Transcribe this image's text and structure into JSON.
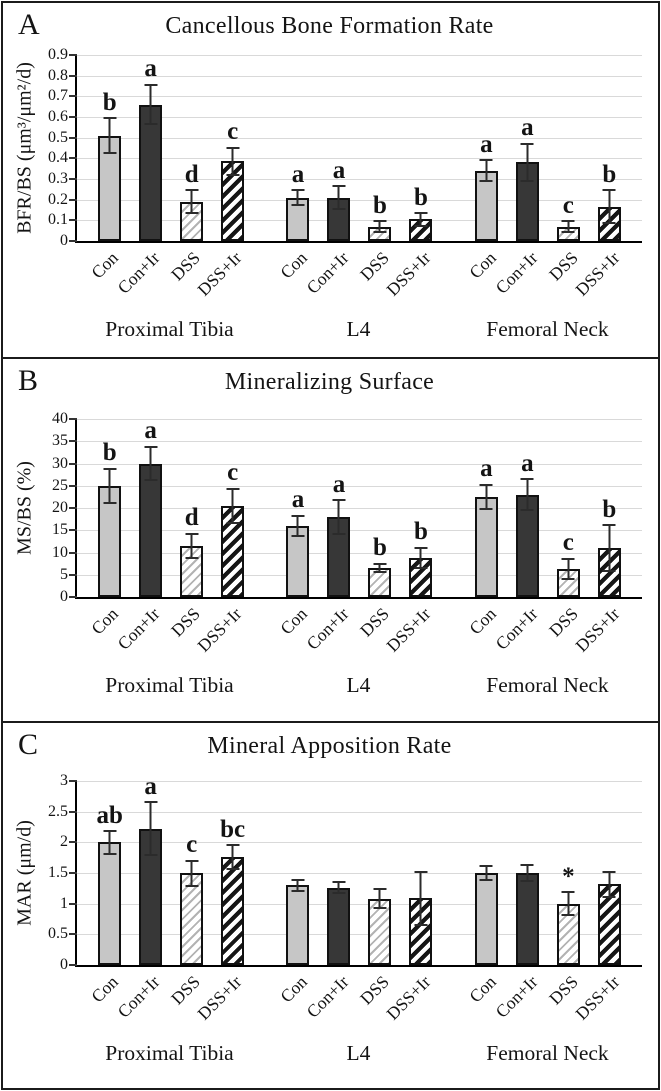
{
  "figure": {
    "type": "multi-panel bar chart figure",
    "panel_labels": [
      "A",
      "B",
      "C"
    ]
  },
  "colors": {
    "bar_light": "#c6c6c6",
    "bar_dark": "#373737",
    "hatch_light": "#b3b3b3",
    "hatch_dark": "#161616",
    "grid": "#d9d9d9",
    "ink": "#141414",
    "border": "#1b1b1b"
  },
  "chart_data": [
    {
      "type": "bar",
      "panel_label": "A",
      "title": "Cancellous Bone Formation Rate",
      "xlabel": "",
      "ylabel": "BFR/BS (μm³/μm²/d)",
      "ylim": [
        0,
        0.9
      ],
      "ytick_step": 0.1,
      "ytick_labels": [
        "0.9",
        "0.8",
        "0.7",
        "0.6",
        "0.5",
        "0.4",
        "0.3",
        "0.2",
        "0.1",
        "0"
      ],
      "grid": true,
      "legend_position": "none",
      "categories": [
        "Con",
        "Con+Ir",
        "DSS",
        "DSS+Ir"
      ],
      "bar_styles": {
        "Con": "light gray solid",
        "Con+Ir": "dark gray solid",
        "DSS": "light diagonal hatch",
        "DSS+Ir": "dark diagonal hatch"
      },
      "groups": [
        {
          "name": "Proximal Tibia",
          "bars": [
            {
              "category": "Con",
              "style": "con",
              "value": 0.51,
              "error": 0.09,
              "sig": "b"
            },
            {
              "category": "Con+Ir",
              "style": "con_ir",
              "value": 0.66,
              "error": 0.1,
              "sig": "a"
            },
            {
              "category": "DSS",
              "style": "dss",
              "value": 0.19,
              "error": 0.06,
              "sig": "d"
            },
            {
              "category": "DSS+Ir",
              "style": "dss_ir",
              "value": 0.385,
              "error": 0.07,
              "sig": "c"
            }
          ]
        },
        {
          "name": "L4",
          "bars": [
            {
              "category": "Con",
              "style": "con",
              "value": 0.21,
              "error": 0.04,
              "sig": "a"
            },
            {
              "category": "Con+Ir",
              "style": "con_ir",
              "value": 0.21,
              "error": 0.06,
              "sig": "a"
            },
            {
              "category": "DSS",
              "style": "dss",
              "value": 0.07,
              "error": 0.03,
              "sig": "b"
            },
            {
              "category": "DSS+Ir",
              "style": "dss_ir",
              "value": 0.105,
              "error": 0.035,
              "sig": "b"
            }
          ]
        },
        {
          "name": "Femoral Neck",
          "bars": [
            {
              "category": "Con",
              "style": "con",
              "value": 0.34,
              "error": 0.055,
              "sig": "a"
            },
            {
              "category": "Con+Ir",
              "style": "con_ir",
              "value": 0.38,
              "error": 0.095,
              "sig": "a"
            },
            {
              "category": "DSS",
              "style": "dss",
              "value": 0.07,
              "error": 0.03,
              "sig": "c"
            },
            {
              "category": "DSS+Ir",
              "style": "dss_ir",
              "value": 0.165,
              "error": 0.085,
              "sig": "b"
            }
          ]
        }
      ]
    },
    {
      "type": "bar",
      "panel_label": "B",
      "title": "Mineralizing Surface",
      "xlabel": "",
      "ylabel": "MS/BS (%)",
      "ylim": [
        0,
        40
      ],
      "ytick_step": 5,
      "ytick_labels": [
        "40",
        "35",
        "30",
        "25",
        "20",
        "15",
        "10",
        "5",
        "0"
      ],
      "grid": true,
      "legend_position": "none",
      "categories": [
        "Con",
        "Con+Ir",
        "DSS",
        "DSS+Ir"
      ],
      "bar_styles": {
        "Con": "light gray solid",
        "Con+Ir": "dark gray solid",
        "DSS": "light diagonal hatch",
        "DSS+Ir": "dark diagonal hatch"
      },
      "groups": [
        {
          "name": "Proximal Tibia",
          "bars": [
            {
              "category": "Con",
              "style": "con",
              "value": 25,
              "error": 4,
              "sig": "b"
            },
            {
              "category": "Con+Ir",
              "style": "con_ir",
              "value": 30,
              "error": 4,
              "sig": "a"
            },
            {
              "category": "DSS",
              "style": "dss",
              "value": 11.5,
              "error": 3,
              "sig": "d"
            },
            {
              "category": "DSS+Ir",
              "style": "dss_ir",
              "value": 20.5,
              "error": 4,
              "sig": "c"
            }
          ]
        },
        {
          "name": "L4",
          "bars": [
            {
              "category": "Con",
              "style": "con",
              "value": 16,
              "error": 2.5,
              "sig": "a"
            },
            {
              "category": "Con+Ir",
              "style": "con_ir",
              "value": 18,
              "error": 4,
              "sig": "a"
            },
            {
              "category": "DSS",
              "style": "dss",
              "value": 6.5,
              "error": 1.2,
              "sig": "b"
            },
            {
              "category": "DSS+Ir",
              "style": "dss_ir",
              "value": 8.8,
              "error": 2.5,
              "sig": "b"
            }
          ]
        },
        {
          "name": "Femoral Neck",
          "bars": [
            {
              "category": "Con",
              "style": "con",
              "value": 22.5,
              "error": 3,
              "sig": "a"
            },
            {
              "category": "Con+Ir",
              "style": "con_ir",
              "value": 23,
              "error": 3.7,
              "sig": "a"
            },
            {
              "category": "DSS",
              "style": "dss",
              "value": 6.3,
              "error": 2.5,
              "sig": "c"
            },
            {
              "category": "DSS+Ir",
              "style": "dss_ir",
              "value": 11,
              "error": 5.4,
              "sig": "b"
            }
          ]
        }
      ]
    },
    {
      "type": "bar",
      "panel_label": "C",
      "title": "Mineral Apposition Rate",
      "xlabel": "",
      "ylabel": "MAR (μm/d)",
      "ylim": [
        0,
        3
      ],
      "ytick_step": 0.5,
      "ytick_labels": [
        "3",
        "2.5",
        "2",
        "1.5",
        "1",
        "0.5",
        "0"
      ],
      "grid": true,
      "legend_position": "none",
      "categories": [
        "Con",
        "Con+Ir",
        "DSS",
        "DSS+Ir"
      ],
      "bar_styles": {
        "Con": "light gray solid",
        "Con+Ir": "dark gray solid",
        "DSS": "light diagonal hatch",
        "DSS+Ir": "dark diagonal hatch"
      },
      "groups": [
        {
          "name": "Proximal Tibia",
          "bars": [
            {
              "category": "Con",
              "style": "con",
              "value": 2.0,
              "error": 0.2,
              "sig": "ab"
            },
            {
              "category": "Con+Ir",
              "style": "con_ir",
              "value": 2.22,
              "error": 0.45,
              "sig": "a"
            },
            {
              "category": "DSS",
              "style": "dss",
              "value": 1.5,
              "error": 0.22,
              "sig": "c"
            },
            {
              "category": "DSS+Ir",
              "style": "dss_ir",
              "value": 1.76,
              "error": 0.21,
              "sig": "bc"
            }
          ]
        },
        {
          "name": "L4",
          "bars": [
            {
              "category": "Con",
              "style": "con",
              "value": 1.3,
              "error": 0.11,
              "sig": ""
            },
            {
              "category": "Con+Ir",
              "style": "con_ir",
              "value": 1.26,
              "error": 0.11,
              "sig": ""
            },
            {
              "category": "DSS",
              "style": "dss",
              "value": 1.08,
              "error": 0.17,
              "sig": ""
            },
            {
              "category": "DSS+Ir",
              "style": "dss_ir",
              "value": 1.09,
              "error": 0.45,
              "sig": ""
            }
          ]
        },
        {
          "name": "Femoral Neck",
          "bars": [
            {
              "category": "Con",
              "style": "con",
              "value": 1.5,
              "error": 0.13,
              "sig": ""
            },
            {
              "category": "Con+Ir",
              "style": "con_ir",
              "value": 1.5,
              "error": 0.14,
              "sig": ""
            },
            {
              "category": "DSS",
              "style": "dss",
              "value": 1.0,
              "error": 0.2,
              "sig": "*"
            },
            {
              "category": "DSS+Ir",
              "style": "dss_ir",
              "value": 1.32,
              "error": 0.22,
              "sig": ""
            }
          ]
        }
      ]
    }
  ]
}
